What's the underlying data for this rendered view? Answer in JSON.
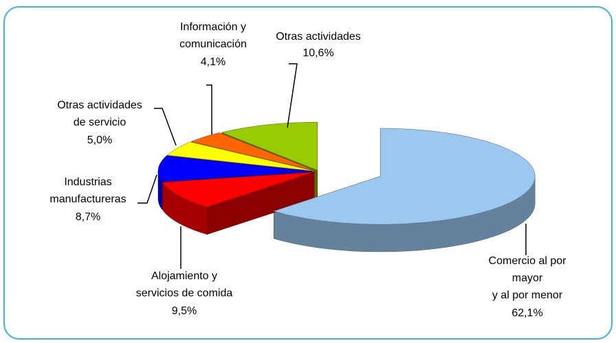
{
  "chart_data": {
    "type": "pie3d",
    "categories": [
      "Comercio al por\nmayor\ny al por menor",
      "Alojamiento y\nservicios de comida",
      "Industrias\nmanufactureras",
      "Otras actividades\nde servicio",
      "Información y\ncomunicación",
      "Otras actividades"
    ],
    "values": [
      62.1,
      9.5,
      8.7,
      5.0,
      4.1,
      10.6
    ],
    "value_labels": [
      "62,1%",
      "9,5%",
      "8,7%",
      "5,0%",
      "4,1%",
      "10,6%"
    ],
    "colors": [
      "#9cc8f0",
      "#ff0000",
      "#0000ff",
      "#ffff00",
      "#ff6600",
      "#99cc00"
    ]
  }
}
